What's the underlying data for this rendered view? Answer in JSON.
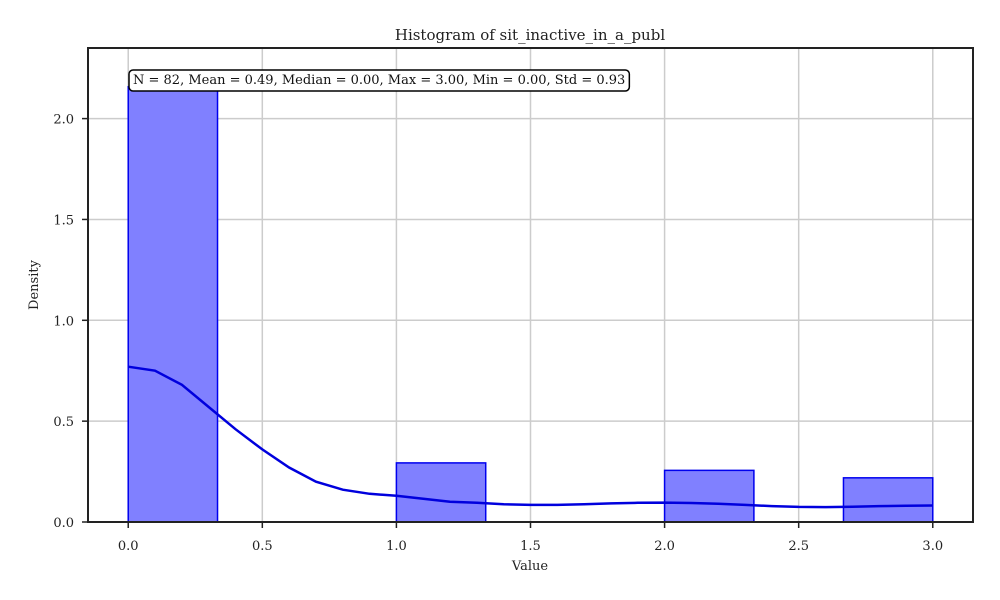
{
  "chart_data": {
    "type": "histogram",
    "title": "Histogram of sit_inactive_in_a_publ",
    "xlabel": "Value",
    "ylabel": "Density",
    "xlim": [
      -0.15,
      3.15
    ],
    "ylim": [
      0,
      2.35
    ],
    "x_ticks": [
      0.0,
      0.5,
      1.0,
      1.5,
      2.0,
      2.5,
      3.0
    ],
    "x_tick_labels": [
      "0.0",
      "0.5",
      "1.0",
      "1.5",
      "2.0",
      "2.5",
      "3.0"
    ],
    "y_ticks": [
      0.0,
      0.5,
      1.0,
      1.5,
      2.0
    ],
    "y_tick_labels": [
      "0.0",
      "0.5",
      "1.0",
      "1.5",
      "2.0"
    ],
    "grid": true,
    "bins": [
      {
        "x0": 0.0,
        "x1": 0.333,
        "density": 2.158
      },
      {
        "x0": 0.333,
        "x1": 0.667,
        "density": 0.0
      },
      {
        "x0": 0.667,
        "x1": 1.0,
        "density": 0.0
      },
      {
        "x0": 1.0,
        "x1": 1.333,
        "density": 0.293
      },
      {
        "x0": 1.333,
        "x1": 1.667,
        "density": 0.0
      },
      {
        "x0": 1.667,
        "x1": 2.0,
        "density": 0.0
      },
      {
        "x0": 2.0,
        "x1": 2.333,
        "density": 0.256
      },
      {
        "x0": 2.333,
        "x1": 2.667,
        "density": 0.0
      },
      {
        "x0": 2.667,
        "x1": 3.0,
        "density": 0.219
      }
    ],
    "kde": {
      "x": [
        0.0,
        0.1,
        0.2,
        0.3,
        0.4,
        0.5,
        0.6,
        0.7,
        0.8,
        0.9,
        1.0,
        1.1,
        1.2,
        1.3,
        1.4,
        1.5,
        1.6,
        1.7,
        1.8,
        1.9,
        2.0,
        2.1,
        2.2,
        2.3,
        2.4,
        2.5,
        2.6,
        2.7,
        2.8,
        2.9,
        3.0
      ],
      "y": [
        0.77,
        0.75,
        0.68,
        0.57,
        0.46,
        0.36,
        0.27,
        0.2,
        0.16,
        0.14,
        0.13,
        0.115,
        0.1,
        0.095,
        0.088,
        0.085,
        0.085,
        0.088,
        0.092,
        0.095,
        0.096,
        0.094,
        0.09,
        0.085,
        0.079,
        0.075,
        0.074,
        0.076,
        0.079,
        0.081,
        0.082
      ]
    },
    "stats_box": "N = 82, Mean = 0.49, Median = 0.00, Max = 3.00, Min = 0.00, Std = 0.93",
    "colors": {
      "bar_fill": "#8080ff",
      "bar_edge": "#0000ee",
      "kde_line": "#0000dd",
      "grid": "#cccccc",
      "axes": "#222222"
    }
  }
}
